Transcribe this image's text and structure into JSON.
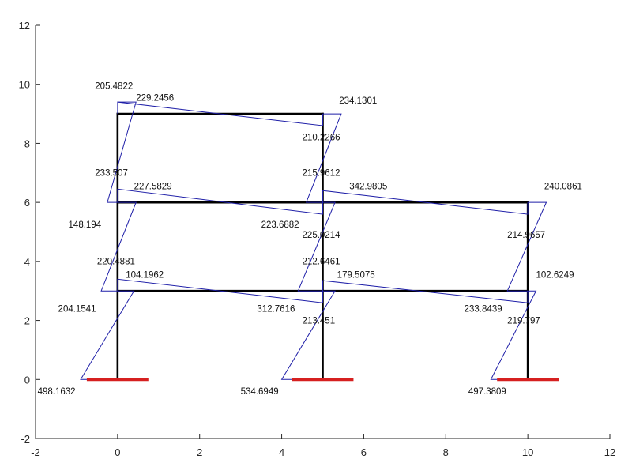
{
  "chart_data": {
    "type": "diagram",
    "title": "",
    "xlabel": "",
    "ylabel": "",
    "xlim": [
      -2,
      12
    ],
    "ylim": [
      -2,
      12
    ],
    "xticks": [
      -2,
      0,
      2,
      4,
      6,
      8,
      10,
      12
    ],
    "yticks": [
      -2,
      0,
      2,
      4,
      6,
      8,
      10,
      12
    ],
    "colors": {
      "frame": "#000000",
      "moment": "#1f1fa8",
      "support": "#d62020",
      "axis": "#262626"
    },
    "frame_members": [
      [
        [
          0,
          0
        ],
        [
          0,
          3
        ]
      ],
      [
        [
          0,
          3
        ],
        [
          0,
          6
        ]
      ],
      [
        [
          0,
          6
        ],
        [
          0,
          9
        ]
      ],
      [
        [
          5,
          0
        ],
        [
          5,
          3
        ]
      ],
      [
        [
          5,
          3
        ],
        [
          5,
          6
        ]
      ],
      [
        [
          5,
          6
        ],
        [
          5,
          9
        ]
      ],
      [
        [
          10,
          0
        ],
        [
          10,
          3
        ]
      ],
      [
        [
          10,
          3
        ],
        [
          10,
          6
        ]
      ],
      [
        [
          0,
          3
        ],
        [
          5,
          3
        ]
      ],
      [
        [
          5,
          3
        ],
        [
          10,
          3
        ]
      ],
      [
        [
          0,
          6
        ],
        [
          5,
          6
        ]
      ],
      [
        [
          5,
          6
        ],
        [
          10,
          6
        ]
      ],
      [
        [
          0,
          9
        ],
        [
          5,
          9
        ]
      ]
    ],
    "supports": [
      [
        [
          -0.75,
          0
        ],
        [
          0.75,
          0
        ]
      ],
      [
        [
          4.25,
          0
        ],
        [
          5.75,
          0
        ]
      ],
      [
        [
          9.25,
          0
        ],
        [
          10.75,
          0
        ]
      ]
    ],
    "moment_diagram": [
      [
        [
          0,
          0
        ],
        [
          -0.9,
          0
        ],
        [
          0.4,
          3
        ],
        [
          0,
          3
        ]
      ],
      [
        [
          0,
          3
        ],
        [
          -0.4,
          3
        ],
        [
          0.45,
          6
        ],
        [
          0,
          6
        ]
      ],
      [
        [
          0,
          6
        ],
        [
          -0.25,
          6
        ],
        [
          0.45,
          9.4
        ],
        [
          0,
          9.4
        ]
      ],
      [
        [
          5,
          0
        ],
        [
          4,
          0
        ],
        [
          5.3,
          3
        ],
        [
          5,
          3
        ]
      ],
      [
        [
          5,
          3
        ],
        [
          4.4,
          3
        ],
        [
          5.3,
          6
        ],
        [
          5,
          6
        ]
      ],
      [
        [
          5,
          6
        ],
        [
          4.6,
          6
        ],
        [
          5.45,
          9
        ],
        [
          5,
          9
        ]
      ],
      [
        [
          10,
          0
        ],
        [
          9.1,
          0
        ],
        [
          10.2,
          3
        ],
        [
          10,
          3
        ]
      ],
      [
        [
          10,
          3
        ],
        [
          9.5,
          3
        ],
        [
          10.45,
          6
        ],
        [
          10,
          6
        ]
      ],
      [
        [
          0,
          3
        ],
        [
          0,
          3.4
        ],
        [
          5,
          2.6
        ],
        [
          5,
          3
        ]
      ],
      [
        [
          5,
          3
        ],
        [
          5,
          3.35
        ],
        [
          10,
          2.6
        ],
        [
          10,
          3
        ]
      ],
      [
        [
          0,
          6
        ],
        [
          0,
          6.45
        ],
        [
          5,
          5.6
        ],
        [
          5,
          6
        ]
      ],
      [
        [
          5,
          6
        ],
        [
          5,
          6.4
        ],
        [
          10,
          5.6
        ],
        [
          10,
          6
        ]
      ],
      [
        [
          0,
          9
        ],
        [
          0,
          9.4
        ],
        [
          5,
          8.6
        ],
        [
          5,
          9
        ]
      ]
    ],
    "annotations": [
      {
        "text": "205.4822",
        "x": -0.55,
        "y": 9.85
      },
      {
        "text": "229.2456",
        "x": 0.45,
        "y": 9.45
      },
      {
        "text": "234.1301",
        "x": 5.4,
        "y": 9.35
      },
      {
        "text": "210.2266",
        "x": 4.5,
        "y": 8.1
      },
      {
        "text": "233.507",
        "x": -0.55,
        "y": 6.9
      },
      {
        "text": "215.9612",
        "x": 4.5,
        "y": 6.9
      },
      {
        "text": "227.5829",
        "x": 0.4,
        "y": 6.45
      },
      {
        "text": "342.9805",
        "x": 5.65,
        "y": 6.45
      },
      {
        "text": "240.0861",
        "x": 10.4,
        "y": 6.45
      },
      {
        "text": "148.194",
        "x": -1.2,
        "y": 5.15
      },
      {
        "text": "223.6882",
        "x": 3.5,
        "y": 5.15
      },
      {
        "text": "225.0214",
        "x": 4.5,
        "y": 4.8
      },
      {
        "text": "214.9657",
        "x": 9.5,
        "y": 4.8
      },
      {
        "text": "220.4881",
        "x": -0.5,
        "y": 3.9
      },
      {
        "text": "212.6461",
        "x": 4.5,
        "y": 3.9
      },
      {
        "text": "104.1962",
        "x": 0.2,
        "y": 3.45
      },
      {
        "text": "179.5075",
        "x": 5.35,
        "y": 3.45
      },
      {
        "text": "102.6249",
        "x": 10.2,
        "y": 3.45
      },
      {
        "text": "204.1541",
        "x": -1.45,
        "y": 2.3
      },
      {
        "text": "312.7616",
        "x": 3.4,
        "y": 2.3
      },
      {
        "text": "233.8439",
        "x": 8.45,
        "y": 2.3
      },
      {
        "text": "213.451",
        "x": 4.5,
        "y": 1.9
      },
      {
        "text": "219.797",
        "x": 9.5,
        "y": 1.9
      },
      {
        "text": "498.1632",
        "x": -1.95,
        "y": -0.5
      },
      {
        "text": "534.6949",
        "x": 3.0,
        "y": -0.5
      },
      {
        "text": "497.3809",
        "x": 8.55,
        "y": -0.5
      }
    ]
  }
}
